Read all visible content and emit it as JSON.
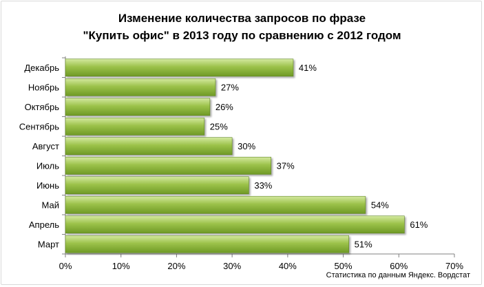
{
  "chart_data": {
    "type": "bar",
    "orientation": "horizontal",
    "title_lines": [
      "Изменение количества запросов по фразе",
      "\"Купить офис\" в 2013 году по сравнению с 2012 годом"
    ],
    "categories": [
      "Декабрь",
      "Ноябрь",
      "Октябрь",
      "Сентябрь",
      "Август",
      "Июль",
      "Июнь",
      "Май",
      "Апрель",
      "Март"
    ],
    "values": [
      41,
      27,
      26,
      25,
      30,
      37,
      33,
      54,
      61,
      51
    ],
    "data_labels": [
      "41%",
      "27%",
      "26%",
      "25%",
      "30%",
      "37%",
      "33%",
      "54%",
      "61%",
      "51%"
    ],
    "xlim": [
      0,
      70
    ],
    "x_ticks": [
      0,
      10,
      20,
      30,
      40,
      50,
      60,
      70
    ],
    "x_tick_labels": [
      "0%",
      "10%",
      "20%",
      "30%",
      "40%",
      "50%",
      "60%",
      "70%"
    ],
    "grid": false,
    "legend": "none",
    "bar_color": "#8db43a",
    "source_note": "Статистика по данным Яндекс. Вордстат"
  }
}
